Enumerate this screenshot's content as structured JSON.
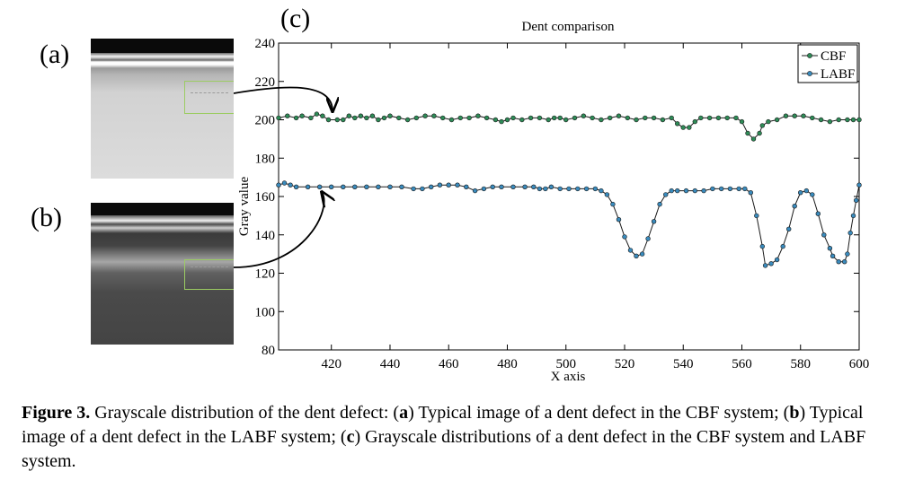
{
  "panels": {
    "a_label": "(a)",
    "b_label": "(b)",
    "c_label": "(c)"
  },
  "chart_data": {
    "type": "line",
    "title": "Dent comparison",
    "xlabel": "X axis",
    "ylabel": "Gray value",
    "xlim": [
      402,
      600
    ],
    "ylim": [
      80,
      240
    ],
    "xticks": [
      420,
      440,
      460,
      480,
      500,
      520,
      540,
      560,
      580,
      600
    ],
    "yticks": [
      80,
      100,
      120,
      140,
      160,
      180,
      200,
      220,
      240
    ],
    "legend": {
      "position": "top-right",
      "entries": [
        "CBF",
        "LABF"
      ]
    },
    "series": [
      {
        "name": "CBF",
        "color": "#2e8b57",
        "points": [
          [
            402,
            201
          ],
          [
            405,
            202
          ],
          [
            408,
            201
          ],
          [
            410,
            202
          ],
          [
            413,
            201
          ],
          [
            415,
            203
          ],
          [
            417,
            202
          ],
          [
            419,
            200
          ],
          [
            422,
            200
          ],
          [
            424,
            200
          ],
          [
            426,
            202
          ],
          [
            428,
            201
          ],
          [
            430,
            202
          ],
          [
            432,
            201
          ],
          [
            434,
            202
          ],
          [
            436,
            200
          ],
          [
            438,
            201
          ],
          [
            440,
            202
          ],
          [
            443,
            201
          ],
          [
            446,
            200
          ],
          [
            449,
            201
          ],
          [
            452,
            202
          ],
          [
            455,
            202
          ],
          [
            458,
            201
          ],
          [
            461,
            200
          ],
          [
            464,
            201
          ],
          [
            467,
            201
          ],
          [
            470,
            202
          ],
          [
            473,
            201
          ],
          [
            476,
            200
          ],
          [
            478,
            199
          ],
          [
            480,
            200
          ],
          [
            482,
            201
          ],
          [
            485,
            200
          ],
          [
            488,
            201
          ],
          [
            491,
            201
          ],
          [
            494,
            200
          ],
          [
            496,
            201
          ],
          [
            498,
            201
          ],
          [
            500,
            200
          ],
          [
            503,
            201
          ],
          [
            506,
            202
          ],
          [
            509,
            201
          ],
          [
            512,
            200
          ],
          [
            515,
            201
          ],
          [
            518,
            202
          ],
          [
            521,
            201
          ],
          [
            524,
            200
          ],
          [
            527,
            201
          ],
          [
            530,
            201
          ],
          [
            533,
            200
          ],
          [
            536,
            201
          ],
          [
            538,
            198
          ],
          [
            540,
            196
          ],
          [
            542,
            196
          ],
          [
            544,
            199
          ],
          [
            546,
            201
          ],
          [
            549,
            201
          ],
          [
            552,
            201
          ],
          [
            555,
            201
          ],
          [
            558,
            201
          ],
          [
            560,
            199
          ],
          [
            562,
            193
          ],
          [
            564,
            190
          ],
          [
            566,
            193
          ],
          [
            567,
            197
          ],
          [
            569,
            199
          ],
          [
            572,
            200
          ],
          [
            575,
            202
          ],
          [
            578,
            202
          ],
          [
            581,
            202
          ],
          [
            584,
            201
          ],
          [
            587,
            200
          ],
          [
            590,
            199
          ],
          [
            593,
            200
          ],
          [
            596,
            200
          ],
          [
            598,
            200
          ],
          [
            600,
            200
          ]
        ]
      },
      {
        "name": "LABF",
        "color": "#3a8bbd",
        "points": [
          [
            402,
            166
          ],
          [
            404,
            167
          ],
          [
            406,
            166
          ],
          [
            408,
            165
          ],
          [
            412,
            165
          ],
          [
            416,
            165
          ],
          [
            420,
            165
          ],
          [
            424,
            165
          ],
          [
            428,
            165
          ],
          [
            432,
            165
          ],
          [
            436,
            165
          ],
          [
            440,
            165
          ],
          [
            444,
            165
          ],
          [
            448,
            164
          ],
          [
            451,
            164
          ],
          [
            454,
            165
          ],
          [
            457,
            166
          ],
          [
            460,
            166
          ],
          [
            463,
            166
          ],
          [
            466,
            165
          ],
          [
            469,
            163
          ],
          [
            472,
            164
          ],
          [
            475,
            165
          ],
          [
            478,
            165
          ],
          [
            482,
            165
          ],
          [
            486,
            165
          ],
          [
            489,
            165
          ],
          [
            491,
            164
          ],
          [
            493,
            164
          ],
          [
            495,
            165
          ],
          [
            498,
            164
          ],
          [
            501,
            164
          ],
          [
            504,
            164
          ],
          [
            507,
            164
          ],
          [
            510,
            164
          ],
          [
            512,
            163
          ],
          [
            514,
            161
          ],
          [
            516,
            156
          ],
          [
            518,
            148
          ],
          [
            520,
            139
          ],
          [
            522,
            132
          ],
          [
            524,
            129
          ],
          [
            526,
            130
          ],
          [
            528,
            138
          ],
          [
            530,
            147
          ],
          [
            532,
            156
          ],
          [
            534,
            161
          ],
          [
            536,
            163
          ],
          [
            538,
            163
          ],
          [
            541,
            163
          ],
          [
            544,
            163
          ],
          [
            547,
            163
          ],
          [
            550,
            164
          ],
          [
            553,
            164
          ],
          [
            556,
            164
          ],
          [
            559,
            164
          ],
          [
            561,
            164
          ],
          [
            563,
            162
          ],
          [
            565,
            150
          ],
          [
            567,
            134
          ],
          [
            568,
            124
          ],
          [
            570,
            125
          ],
          [
            572,
            127
          ],
          [
            574,
            134
          ],
          [
            576,
            143
          ],
          [
            578,
            155
          ],
          [
            580,
            162
          ],
          [
            582,
            163
          ],
          [
            584,
            161
          ],
          [
            586,
            151
          ],
          [
            588,
            140
          ],
          [
            590,
            133
          ],
          [
            591,
            129
          ],
          [
            593,
            126
          ],
          [
            595,
            126
          ],
          [
            596,
            130
          ],
          [
            597,
            141
          ],
          [
            598,
            150
          ],
          [
            599,
            158
          ],
          [
            600,
            166
          ]
        ]
      }
    ]
  },
  "caption": {
    "figure_label": "Figure 3.",
    "p1": " Grayscale distribution of the dent defect: (",
    "a": "a",
    "p2": ") Typical image of a dent defect in the CBF system; (",
    "b": "b",
    "p3": ") Typical image of a dent defect in the LABF system; (",
    "c": "c",
    "p4": ") Grayscale distributions of a dent defect in the CBF system and LABF system."
  }
}
